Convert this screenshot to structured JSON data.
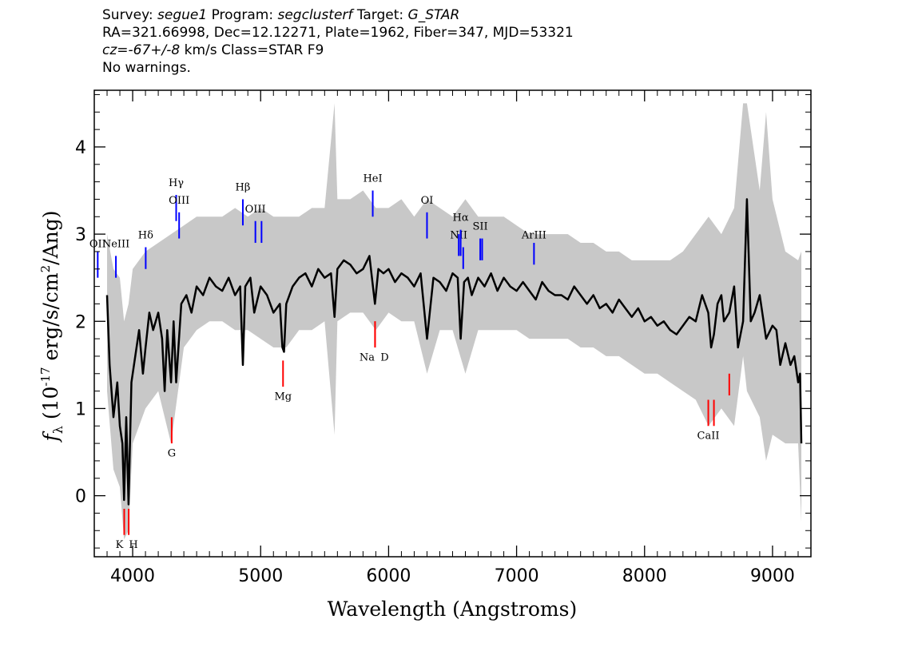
{
  "header": {
    "survey_label": "Survey:",
    "survey": "segue1",
    "program_label": "Program:",
    "program": "segclusterf",
    "target_label": "Target:",
    "target": "G_STAR",
    "line2": "RA=321.66998, Dec=12.12271, Plate=1962, Fiber=347, MJD=53321",
    "cz_symbol": "cz",
    "cz_eq": "=",
    "cz_value": "-67+/-8",
    "cz_rest": " km/s Class=STAR F9",
    "warnings": "No warnings."
  },
  "chart_data": {
    "type": "line",
    "xlabel": "Wavelength (Angstroms)",
    "ylabel": "f_λ (10^-17 erg/s/cm^2/Ang)",
    "xlim": [
      3700,
      9300
    ],
    "ylim": [
      -0.7,
      4.65
    ],
    "x_ticks": [
      4000,
      5000,
      6000,
      7000,
      8000,
      9000
    ],
    "y_ticks": [
      0,
      1,
      2,
      3,
      4
    ],
    "colors": {
      "flux": "#000000",
      "error": "#c8c8c8",
      "emission": "#0000ff",
      "absorption": "#ff0000"
    },
    "series": [
      {
        "role": "flux",
        "x": [
          3800,
          3820,
          3850,
          3880,
          3900,
          3920,
          3933,
          3950,
          3968,
          3990,
          4020,
          4050,
          4080,
          4101,
          4130,
          4160,
          4200,
          4230,
          4250,
          4270,
          4300,
          4320,
          4340,
          4380,
          4420,
          4460,
          4500,
          4550,
          4600,
          4650,
          4700,
          4750,
          4800,
          4840,
          4861,
          4880,
          4920,
          4950,
          5000,
          5050,
          5100,
          5150,
          5170,
          5183,
          5200,
          5250,
          5300,
          5350,
          5400,
          5450,
          5500,
          5550,
          5577,
          5600,
          5650,
          5700,
          5750,
          5800,
          5850,
          5893,
          5920,
          5960,
          6000,
          6050,
          6100,
          6150,
          6200,
          6250,
          6300,
          6350,
          6400,
          6450,
          6500,
          6540,
          6563,
          6590,
          6620,
          6650,
          6700,
          6750,
          6800,
          6850,
          6900,
          6950,
          7000,
          7050,
          7100,
          7150,
          7200,
          7250,
          7300,
          7350,
          7400,
          7450,
          7500,
          7550,
          7600,
          7650,
          7700,
          7750,
          7800,
          7850,
          7900,
          7950,
          8000,
          8050,
          8100,
          8150,
          8200,
          8250,
          8300,
          8350,
          8400,
          8450,
          8498,
          8520,
          8542,
          8570,
          8600,
          8620,
          8662,
          8700,
          8730,
          8770,
          8800,
          8830,
          8860,
          8900,
          8950,
          9000,
          9030,
          9060,
          9100,
          9140,
          9170,
          9200,
          9215,
          9225
        ],
        "y": [
          2.3,
          1.5,
          0.9,
          1.3,
          0.8,
          0.6,
          -0.05,
          0.9,
          -0.1,
          1.3,
          1.6,
          1.9,
          1.4,
          1.7,
          2.1,
          1.9,
          2.1,
          1.8,
          1.2,
          1.9,
          1.3,
          2.0,
          1.3,
          2.2,
          2.3,
          2.1,
          2.4,
          2.3,
          2.5,
          2.4,
          2.35,
          2.5,
          2.3,
          2.4,
          1.5,
          2.4,
          2.5,
          2.1,
          2.4,
          2.3,
          2.1,
          2.2,
          1.7,
          1.65,
          2.2,
          2.4,
          2.5,
          2.55,
          2.4,
          2.6,
          2.5,
          2.55,
          2.05,
          2.6,
          2.7,
          2.65,
          2.55,
          2.6,
          2.75,
          2.2,
          2.6,
          2.55,
          2.6,
          2.45,
          2.55,
          2.5,
          2.4,
          2.55,
          1.8,
          2.5,
          2.45,
          2.35,
          2.55,
          2.5,
          1.8,
          2.45,
          2.5,
          2.3,
          2.5,
          2.4,
          2.55,
          2.35,
          2.5,
          2.4,
          2.35,
          2.45,
          2.35,
          2.25,
          2.45,
          2.35,
          2.3,
          2.3,
          2.25,
          2.4,
          2.3,
          2.2,
          2.3,
          2.15,
          2.2,
          2.1,
          2.25,
          2.15,
          2.05,
          2.15,
          2.0,
          2.05,
          1.95,
          2.0,
          1.9,
          1.85,
          1.95,
          2.05,
          2.0,
          2.3,
          2.1,
          1.7,
          1.85,
          2.2,
          2.3,
          2.0,
          2.1,
          2.4,
          1.7,
          2.0,
          3.4,
          2.0,
          2.1,
          2.3,
          1.8,
          1.95,
          1.9,
          1.5,
          1.75,
          1.5,
          1.6,
          1.3,
          1.4,
          0.6
        ]
      },
      {
        "role": "error",
        "x": [
          3800,
          3850,
          3900,
          3933,
          3968,
          4000,
          4100,
          4200,
          4300,
          4400,
          4500,
          4600,
          4700,
          4800,
          4900,
          5000,
          5100,
          5200,
          5300,
          5400,
          5500,
          5577,
          5600,
          5700,
          5800,
          5900,
          6000,
          6100,
          6200,
          6300,
          6400,
          6500,
          6600,
          6700,
          6800,
          6900,
          7000,
          7100,
          7200,
          7300,
          7400,
          7500,
          7600,
          7700,
          7800,
          7900,
          8000,
          8100,
          8200,
          8300,
          8400,
          8500,
          8600,
          8700,
          8770,
          8800,
          8900,
          8950,
          9000,
          9100,
          9200,
          9225
        ],
        "lower": [
          1.2,
          0.3,
          0.1,
          -0.5,
          -0.4,
          0.6,
          1.0,
          1.2,
          0.6,
          1.7,
          1.9,
          2.0,
          2.0,
          1.9,
          1.9,
          1.8,
          1.7,
          1.7,
          1.9,
          1.9,
          2.0,
          0.7,
          2.0,
          2.1,
          2.1,
          1.9,
          2.1,
          2.0,
          2.0,
          1.4,
          1.9,
          1.9,
          1.4,
          1.9,
          1.9,
          1.9,
          1.9,
          1.8,
          1.8,
          1.8,
          1.8,
          1.7,
          1.7,
          1.6,
          1.6,
          1.5,
          1.4,
          1.4,
          1.3,
          1.2,
          1.1,
          0.8,
          1.0,
          0.8,
          1.6,
          1.2,
          0.9,
          0.4,
          0.7,
          0.6,
          0.6,
          -0.3
        ],
        "upper": [
          3.0,
          2.6,
          2.5,
          2.0,
          2.2,
          2.6,
          2.8,
          2.9,
          3.0,
          3.1,
          3.2,
          3.2,
          3.2,
          3.3,
          3.2,
          3.3,
          3.2,
          3.2,
          3.2,
          3.3,
          3.3,
          4.5,
          3.4,
          3.4,
          3.5,
          3.3,
          3.3,
          3.4,
          3.2,
          3.4,
          3.3,
          3.2,
          3.4,
          3.2,
          3.2,
          3.2,
          3.1,
          3.0,
          3.0,
          3.0,
          3.0,
          2.9,
          2.9,
          2.8,
          2.8,
          2.7,
          2.7,
          2.7,
          2.7,
          2.8,
          3.0,
          3.2,
          3.0,
          3.3,
          4.5,
          4.5,
          3.5,
          4.4,
          3.4,
          2.8,
          2.7,
          2.8
        ]
      }
    ],
    "emission_lines": [
      {
        "label": "OII",
        "x": 3727,
        "y_low": 2.5,
        "y_high": 2.8,
        "label_y": 2.85
      },
      {
        "label": "NeIII",
        "x": 3869,
        "y_low": 2.5,
        "y_high": 2.75,
        "label_y": 2.85
      },
      {
        "label": "Hδ",
        "x": 4102,
        "y_low": 2.6,
        "y_high": 2.85,
        "label_y": 2.95
      },
      {
        "label": "Hγ",
        "x": 4340,
        "y_low": 3.15,
        "y_high": 3.45,
        "label_y": 3.55
      },
      {
        "label": "OIII",
        "x": 4363,
        "y_low": 2.95,
        "y_high": 3.25,
        "label_y": 3.35
      },
      {
        "label": "Hβ",
        "x": 4861,
        "y_low": 3.1,
        "y_high": 3.4,
        "label_y": 3.5
      },
      {
        "label": "OIII",
        "x": 4959,
        "y_low": 2.9,
        "y_high": 3.15,
        "label_y": 3.25
      },
      {
        "label": "OIII",
        "x": 5007,
        "y_low": 2.9,
        "y_high": 3.15,
        "label_y": 3.25
      },
      {
        "label": "HeI",
        "x": 5876,
        "y_low": 3.2,
        "y_high": 3.5,
        "label_y": 3.6
      },
      {
        "label": "OI",
        "x": 6300,
        "y_low": 2.95,
        "y_high": 3.25,
        "label_y": 3.35
      },
      {
        "label": "NII",
        "x": 6548,
        "y_low": 2.75,
        "y_high": 3.0,
        "label_y": 2.95
      },
      {
        "label": "Hα",
        "x": 6563,
        "y_low": 2.75,
        "y_high": 3.05,
        "label_y": 3.15
      },
      {
        "label": "NII",
        "x": 6583,
        "y_low": 2.6,
        "y_high": 2.85,
        "label_y": 2.95
      },
      {
        "label": "SII",
        "x": 6716,
        "y_low": 2.7,
        "y_high": 2.95,
        "label_y": 3.05
      },
      {
        "label": "SII",
        "x": 6731,
        "y_low": 2.7,
        "y_high": 2.95,
        "label_y": 3.05
      },
      {
        "label": "ArIII",
        "x": 7136,
        "y_low": 2.65,
        "y_high": 2.9,
        "label_y": 2.95
      }
    ],
    "absorption_lines": [
      {
        "label": "K",
        "x": 3934,
        "y_low": -0.45,
        "y_high": -0.15,
        "label_y": -0.6
      },
      {
        "label": "H",
        "x": 3969,
        "y_low": -0.45,
        "y_high": -0.15,
        "label_y": -0.6
      },
      {
        "label": "G",
        "x": 4305,
        "y_low": 0.6,
        "y_high": 0.9,
        "label_y": 0.45
      },
      {
        "label": "Mg",
        "x": 5175,
        "y_low": 1.25,
        "y_high": 1.55,
        "label_y": 1.1
      },
      {
        "label": "Na",
        "x": 5894,
        "y_low": 1.7,
        "y_high": 2.0,
        "label_y": 1.55
      },
      {
        "label": "D",
        "x": 5894,
        "y_low": 1.7,
        "y_high": 2.0,
        "label_y": 1.55
      },
      {
        "label": "CaII",
        "x": 8498,
        "y_low": 0.8,
        "y_high": 1.1,
        "label_y": 0.65
      },
      {
        "label": "CaII",
        "x": 8542,
        "y_low": 0.8,
        "y_high": 1.1,
        "label_y": 0.65
      },
      {
        "label": "CaII",
        "x": 8662,
        "y_low": 1.15,
        "y_high": 1.4,
        "label_y": 0.65
      }
    ]
  }
}
